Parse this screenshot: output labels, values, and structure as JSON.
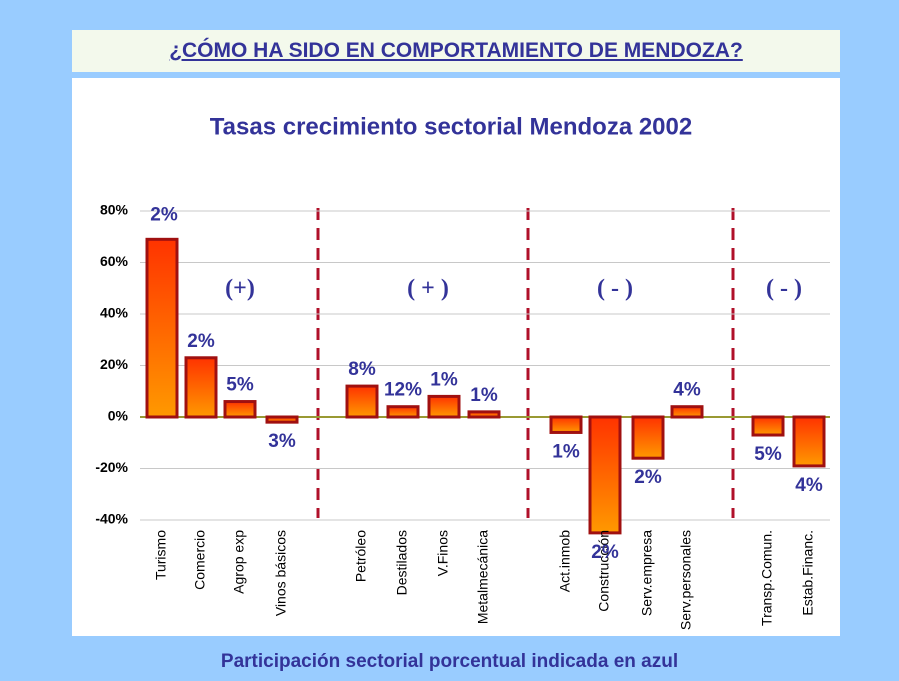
{
  "header": {
    "title": "¿CÓMO HA SIDO EN COMPORTAMIENTO DE MENDOZA?"
  },
  "chart_data": {
    "type": "bar",
    "title": "Tasas crecimiento sectorial Mendoza 2002",
    "categories": [
      "Turismo",
      "Comercio",
      "Agrop exp",
      "Vinos básicos",
      "Petróleo",
      "Destilados",
      "V.Finos",
      "Metalmecánica",
      "Act.inmob",
      "Construcción",
      "Serv.empresa",
      "Serv.personales",
      "Transp.Comun.",
      "Estab.Financ."
    ],
    "values": [
      69,
      23,
      6,
      -2,
      12,
      4,
      8,
      2,
      -6,
      -45,
      -16,
      4,
      -7,
      -19
    ],
    "participation_labels": [
      "2%",
      "2%",
      "5%",
      "3%",
      "8%",
      "12%",
      "1%",
      "1%",
      "1%",
      "2%",
      "2%",
      "4%",
      "5%",
      "4%"
    ],
    "group_labels": [
      "(+)",
      "( + )",
      "( - )",
      "( - )"
    ],
    "color": "#ff5500",
    "ylim": [
      -40,
      80
    ],
    "yticks": [
      {
        "value": -40,
        "label": "-40%"
      },
      {
        "value": -20,
        "label": "-20%"
      },
      {
        "value": 0,
        "label": "0%"
      },
      {
        "value": 20,
        "label": "20%"
      },
      {
        "value": 40,
        "label": "40%"
      },
      {
        "value": 60,
        "label": "60%"
      },
      {
        "value": 80,
        "label": "80%"
      }
    ],
    "grid": true,
    "footnote": "Participación sectorial porcentual indicada en azul"
  }
}
